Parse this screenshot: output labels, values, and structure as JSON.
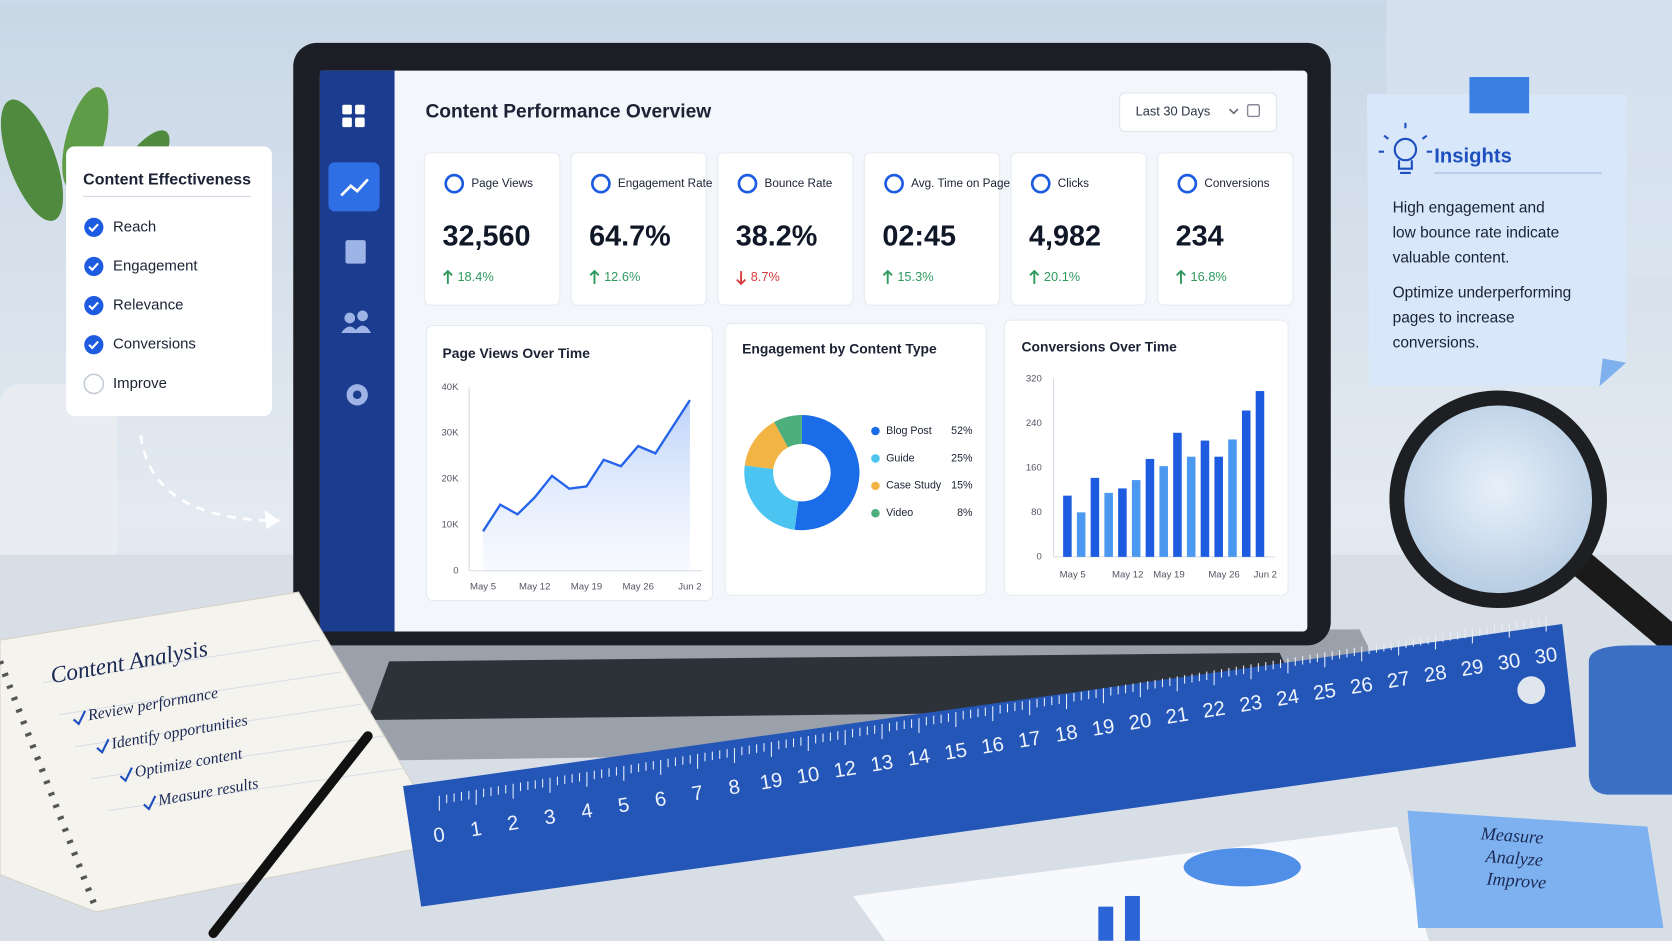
{
  "effectiveness": {
    "title": "Content Effectiveness",
    "items": [
      {
        "label": "Reach",
        "checked": true
      },
      {
        "label": "Engagement",
        "checked": true
      },
      {
        "label": "Relevance",
        "checked": true
      },
      {
        "label": "Conversions",
        "checked": true
      },
      {
        "label": "Improve",
        "checked": false
      }
    ]
  },
  "dashboard": {
    "title": "Content Performance Overview",
    "range": "Last 30 Days",
    "kpis": [
      {
        "label": "Page Views",
        "value": "32,560",
        "change": "18.4%",
        "direction": "up"
      },
      {
        "label": "Engagement Rate",
        "value": "64.7%",
        "change": "12.6%",
        "direction": "up"
      },
      {
        "label": "Bounce Rate",
        "value": "38.2%",
        "change": "8.7%",
        "direction": "down"
      },
      {
        "label": "Avg. Time on Page",
        "value": "02:45",
        "change": "15.3%",
        "direction": "up"
      },
      {
        "label": "Clicks",
        "value": "4,982",
        "change": "20.1%",
        "direction": "up"
      },
      {
        "label": "Conversions",
        "value": "234",
        "change": "16.8%",
        "direction": "up"
      }
    ]
  },
  "chart_data": [
    {
      "type": "line",
      "title": "Page Views Over Time",
      "categories": [
        "May 5",
        null,
        null,
        "May 12",
        null,
        null,
        "May 19",
        null,
        null,
        "May 26",
        null,
        null,
        "Jun 2"
      ],
      "values": [
        8600,
        14400,
        12300,
        16000,
        20700,
        17900,
        18400,
        24200,
        22800,
        27200,
        25600,
        31400,
        37200
      ],
      "color": "#2563eb",
      "ylim": [
        0,
        40000
      ],
      "yticks": [
        0,
        {
          "value": 10000,
          "label": "10K"
        },
        {
          "value": 20000,
          "label": "20K"
        },
        {
          "value": 30000,
          "label": "30K"
        },
        {
          "value": 40000,
          "label": "40K"
        }
      ],
      "grid": false
    },
    {
      "type": "pie",
      "title": "Engagement by Content Type",
      "categories": [
        "Blog Post",
        "Guide",
        "Case Study",
        "Video"
      ],
      "values": [
        52,
        25,
        15,
        8
      ],
      "value_labels": [
        "52%",
        "25%",
        "15%",
        "8%"
      ],
      "colors": [
        "#1a6ce8",
        "#4cc4f2",
        "#f2b544",
        "#4caf7d"
      ],
      "donut": true
    },
    {
      "type": "bar",
      "title": "Conversions Over Time",
      "categories": [
        "May 5",
        null,
        null,
        null,
        "May 12",
        null,
        null,
        "May 19",
        null,
        null,
        null,
        "May 26",
        null,
        null,
        "Jun 2"
      ],
      "values": [
        110,
        80,
        142,
        115,
        123,
        138,
        176,
        163,
        223,
        180,
        209,
        180,
        211,
        263,
        298
      ],
      "colors": [
        "#1d5be0",
        "#4a98ef",
        "#1d5be0",
        "#4a98ef",
        "#1d5be0",
        "#4a98ef",
        "#1d5be0",
        "#4a98ef",
        "#1d5be0",
        "#4a98ef",
        "#1d5be0",
        "#1d5be0",
        "#4a98ef",
        "#1d5be0",
        "#1d5be0"
      ],
      "ylim": [
        0,
        320
      ],
      "yticks": [
        0,
        80,
        160,
        240,
        320
      ],
      "grid": false
    }
  ],
  "insights": {
    "title": "Insights",
    "paragraphs": [
      [
        "High engagement and",
        "low bounce rate indicate",
        "valuable content."
      ],
      [
        "Optimize underperforming",
        "pages to increase",
        "conversions."
      ]
    ]
  },
  "notebook": {
    "title": "Content Analysis",
    "items": [
      "Review performance",
      "Identify opportunities",
      "Optimize content",
      "Measure results"
    ]
  },
  "ruler": {
    "labels": [
      "0",
      "1",
      "2",
      "3",
      "4",
      "5",
      "6",
      "7",
      "8",
      "19",
      "10",
      "12",
      "13",
      "14",
      "15",
      "16",
      "17",
      "18",
      "19",
      "20",
      "21",
      "22",
      "23",
      "24",
      "25",
      "26",
      "27",
      "28",
      "29",
      "30",
      "30"
    ]
  },
  "sticky_note": {
    "lines": [
      "Measure",
      "Analyze",
      "Improve"
    ]
  }
}
